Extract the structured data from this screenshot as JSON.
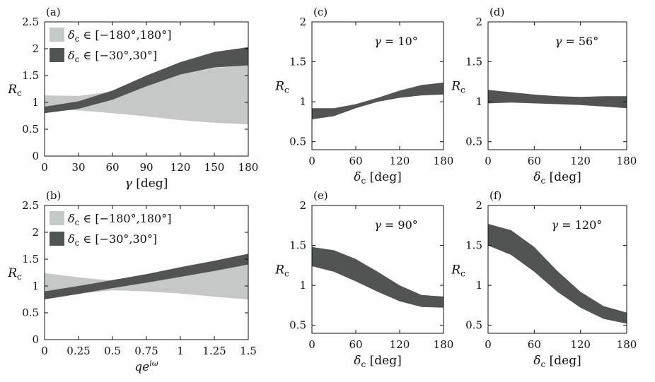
{
  "colors": {
    "light_band": "#c4c8c6",
    "dark_band": "#505453",
    "axes": "#111111",
    "background": "#ffffff"
  },
  "chart_data": [
    {
      "id": "a",
      "panel_label": "(a)",
      "type": "area",
      "xlabel": "[deg]",
      "xlabel_symbol": "γ",
      "ylabel": "R",
      "ylabel_sub": "c",
      "xlim": [
        0,
        180
      ],
      "ylim": [
        0,
        2.5
      ],
      "xticks": [
        0,
        30,
        60,
        90,
        120,
        150,
        180
      ],
      "xtick_labels": [
        "0",
        "30",
        "60",
        "90",
        "120",
        "150",
        "180"
      ],
      "yticks": [
        0,
        0.5,
        1,
        1.5,
        2,
        2.5
      ],
      "ytick_labels": [
        "0",
        "0.5",
        "1",
        "1.5",
        "2",
        "2.5"
      ],
      "legend": [
        {
          "symbol": "δ",
          "sub": "c",
          "range": " ∈ [−180°,180°]",
          "style": "light"
        },
        {
          "symbol": "δ",
          "sub": "c",
          "range": " ∈ [−30°,30°]",
          "style": "dark"
        }
      ],
      "series": [
        {
          "name": "light",
          "x": [
            0,
            30,
            60,
            90,
            120,
            150,
            180
          ],
          "lower": [
            0.87,
            0.85,
            0.8,
            0.74,
            0.67,
            0.62,
            0.59
          ],
          "upper": [
            1.13,
            1.12,
            1.2,
            1.35,
            1.52,
            1.64,
            1.69
          ]
        },
        {
          "name": "dark",
          "x": [
            0,
            30,
            60,
            90,
            120,
            150,
            180
          ],
          "lower": [
            0.8,
            0.88,
            1.05,
            1.3,
            1.52,
            1.65,
            1.69
          ],
          "upper": [
            0.92,
            1.02,
            1.22,
            1.5,
            1.75,
            1.94,
            2.03
          ]
        }
      ]
    },
    {
      "id": "b",
      "panel_label": "(b)",
      "type": "area",
      "xlabel": "qe",
      "xlabel_sup": "iω",
      "ylabel": "R",
      "ylabel_sub": "c",
      "xlim": [
        0,
        1.5
      ],
      "ylim": [
        0,
        2.5
      ],
      "xticks": [
        0,
        0.25,
        0.5,
        0.75,
        1,
        1.25,
        1.5
      ],
      "xtick_labels": [
        "0",
        "0.25",
        "0.5",
        "0.75",
        "1",
        "1.25",
        "1.5"
      ],
      "yticks": [
        0,
        0.5,
        1,
        1.5,
        2,
        2.5
      ],
      "ytick_labels": [
        "0",
        "0.5",
        "1",
        "1.5",
        "2",
        "2.5"
      ],
      "legend": [
        {
          "symbol": "δ",
          "sub": "c",
          "range": " ∈ [−180°,180°]",
          "style": "light"
        },
        {
          "symbol": "δ",
          "sub": "c",
          "range": " ∈ [−30°,30°]",
          "style": "dark"
        }
      ],
      "series": [
        {
          "name": "light",
          "x": [
            0,
            0.25,
            0.5,
            0.75,
            1,
            1.25,
            1.5
          ],
          "lower": [
            0.78,
            0.86,
            0.92,
            0.9,
            0.86,
            0.8,
            0.75
          ],
          "upper": [
            1.24,
            1.16,
            1.1,
            1.11,
            1.25,
            1.38,
            1.47
          ]
        },
        {
          "name": "dark",
          "x": [
            0,
            0.25,
            0.5,
            0.75,
            1,
            1.25,
            1.5
          ],
          "lower": [
            0.75,
            0.85,
            0.96,
            1.06,
            1.17,
            1.28,
            1.4
          ],
          "upper": [
            0.9,
            1.0,
            1.11,
            1.22,
            1.35,
            1.47,
            1.6
          ]
        }
      ]
    },
    {
      "id": "c",
      "panel_label": "(c)",
      "type": "area",
      "xlabel": "[deg]",
      "xlabel_symbol": "δ",
      "xlabel_sub": "c",
      "ylabel": "R",
      "ylabel_sub": "c",
      "annotation_symbol": "γ",
      "annotation": " = 10°",
      "xlim": [
        0,
        180
      ],
      "ylim": [
        0.4,
        2
      ],
      "xticks": [
        0,
        60,
        120,
        180
      ],
      "xtick_labels": [
        "0",
        "60",
        "120",
        "180"
      ],
      "yticks": [
        0.5,
        1,
        1.5,
        2
      ],
      "ytick_labels": [
        "0.5",
        "1",
        "1.5",
        "2"
      ],
      "series": [
        {
          "name": "dark",
          "x": [
            0,
            30,
            60,
            90,
            120,
            150,
            180
          ],
          "lower": [
            0.78,
            0.82,
            0.92,
            1.0,
            1.05,
            1.08,
            1.09
          ],
          "upper": [
            0.92,
            0.92,
            0.97,
            1.05,
            1.14,
            1.21,
            1.24
          ]
        }
      ]
    },
    {
      "id": "d",
      "panel_label": "(d)",
      "type": "area",
      "xlabel": "[deg]",
      "xlabel_symbol": "δ",
      "xlabel_sub": "c",
      "ylabel": "R",
      "ylabel_sub": "c",
      "annotation_symbol": "γ",
      "annotation": " = 56°",
      "xlim": [
        0,
        180
      ],
      "ylim": [
        0.4,
        2
      ],
      "xticks": [
        0,
        60,
        120,
        180
      ],
      "xtick_labels": [
        "0",
        "60",
        "120",
        "180"
      ],
      "yticks": [
        0.5,
        1,
        1.5,
        2
      ],
      "ytick_labels": [
        "0.5",
        "1",
        "1.5",
        "2"
      ],
      "series": [
        {
          "name": "dark",
          "x": [
            0,
            30,
            60,
            90,
            120,
            150,
            180
          ],
          "lower": [
            0.98,
            0.99,
            0.98,
            0.97,
            0.96,
            0.94,
            0.92
          ],
          "upper": [
            1.15,
            1.12,
            1.09,
            1.07,
            1.06,
            1.07,
            1.07
          ]
        }
      ]
    },
    {
      "id": "e",
      "panel_label": "(e)",
      "type": "area",
      "xlabel": "[deg]",
      "xlabel_symbol": "δ",
      "xlabel_sub": "c",
      "ylabel": "R",
      "ylabel_sub": "c",
      "annotation_symbol": "γ",
      "annotation": " = 90°",
      "xlim": [
        0,
        180
      ],
      "ylim": [
        0.4,
        2
      ],
      "xticks": [
        0,
        60,
        120,
        180
      ],
      "xtick_labels": [
        "0",
        "60",
        "120",
        "180"
      ],
      "yticks": [
        0.5,
        1,
        1.5,
        2
      ],
      "ytick_labels": [
        "0.5",
        "1",
        "1.5",
        "2"
      ],
      "series": [
        {
          "name": "dark",
          "x": [
            0,
            30,
            60,
            90,
            120,
            150,
            180
          ],
          "lower": [
            1.24,
            1.17,
            1.05,
            0.92,
            0.8,
            0.73,
            0.72
          ],
          "upper": [
            1.48,
            1.44,
            1.33,
            1.17,
            1.0,
            0.88,
            0.86
          ]
        }
      ]
    },
    {
      "id": "f",
      "panel_label": "(f)",
      "type": "area",
      "xlabel": "[deg]",
      "xlabel_symbol": "δ",
      "xlabel_sub": "c",
      "ylabel": "R",
      "ylabel_sub": "c",
      "annotation_symbol": "γ",
      "annotation": " = 120°",
      "xlim": [
        0,
        180
      ],
      "ylim": [
        0.4,
        2
      ],
      "xticks": [
        0,
        60,
        120,
        180
      ],
      "xtick_labels": [
        "0",
        "60",
        "120",
        "180"
      ],
      "yticks": [
        0.5,
        1,
        1.5,
        2
      ],
      "ytick_labels": [
        "0.5",
        "1",
        "1.5",
        "2"
      ],
      "series": [
        {
          "name": "dark",
          "x": [
            0,
            30,
            60,
            90,
            120,
            150,
            180
          ],
          "lower": [
            1.5,
            1.38,
            1.17,
            0.92,
            0.72,
            0.58,
            0.52
          ],
          "upper": [
            1.77,
            1.69,
            1.48,
            1.18,
            0.92,
            0.74,
            0.66
          ]
        }
      ]
    }
  ]
}
